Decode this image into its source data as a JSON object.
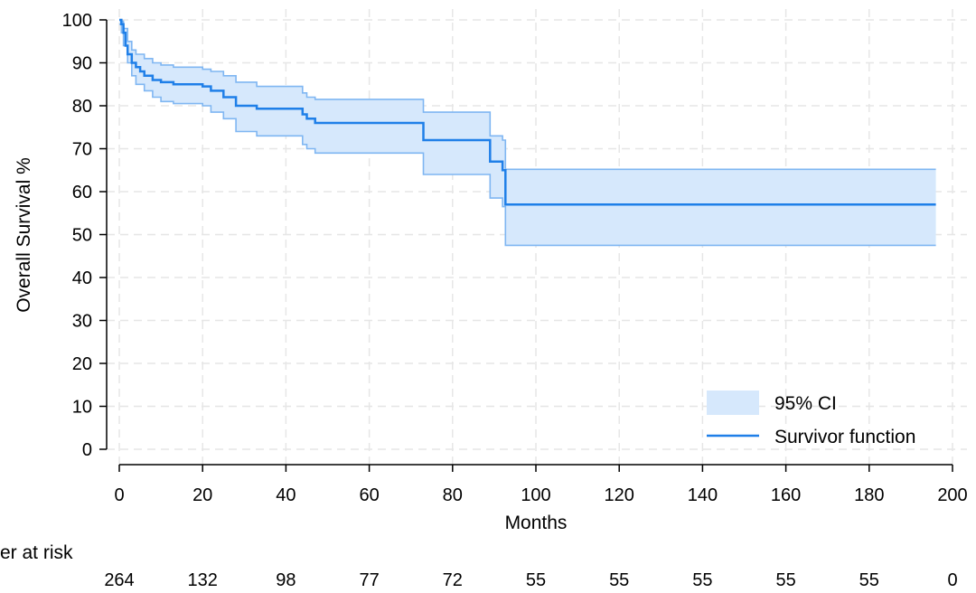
{
  "chart_data": {
    "type": "line",
    "xlabel": "Months",
    "ylabel": "Overall Survival %",
    "xlim": [
      0,
      200
    ],
    "ylim": [
      0,
      100
    ],
    "x_ticks": [
      0,
      20,
      40,
      60,
      80,
      100,
      120,
      140,
      160,
      180,
      200
    ],
    "y_ticks": [
      0,
      10,
      20,
      30,
      40,
      50,
      60,
      70,
      80,
      90,
      100
    ],
    "grid": true,
    "legend_position": "bottom-right",
    "legend": {
      "ci": "95% CI",
      "survival": "Survivor function"
    },
    "colors": {
      "line": "#1f7fe8",
      "ci_fill": "#d6e8fc",
      "ci_edge": "#7fb6f2",
      "grid": "#e6e6e6"
    },
    "survival": {
      "x": [
        0,
        0.5,
        1,
        1.5,
        2,
        3,
        4,
        5,
        6,
        8,
        10,
        13,
        20,
        22,
        25,
        28,
        33,
        38,
        44,
        45,
        47,
        73,
        89,
        92,
        92.7,
        196
      ],
      "y": [
        100,
        99,
        97,
        94,
        92,
        90,
        89,
        88,
        87,
        86,
        85.5,
        85,
        84.5,
        83.5,
        82,
        80,
        79.3,
        79.3,
        78,
        77,
        76,
        72,
        67,
        65,
        57,
        57
      ]
    },
    "ci_upper": {
      "x": [
        0,
        0.5,
        1,
        2,
        3,
        4,
        6,
        8,
        10,
        13,
        20,
        22,
        25,
        28,
        33,
        38,
        44,
        45,
        47,
        73,
        89,
        92,
        92.7,
        196
      ],
      "y": [
        100,
        99.7,
        98,
        95,
        93,
        92,
        91,
        90,
        89.5,
        89,
        88.5,
        88,
        87,
        85.5,
        84.5,
        84.5,
        83,
        82,
        81.5,
        78.5,
        73,
        72,
        65.2,
        65.2
      ]
    },
    "ci_lower": {
      "x": [
        0,
        0.5,
        1,
        2,
        3,
        4,
        6,
        8,
        10,
        13,
        20,
        22,
        25,
        28,
        33,
        38,
        44,
        45,
        47,
        73,
        89,
        92,
        92.7,
        196
      ],
      "y": [
        99,
        97,
        94,
        90,
        87,
        85,
        83.5,
        82,
        81,
        80.5,
        80,
        78.5,
        77,
        74,
        73,
        73,
        71,
        70,
        69,
        64,
        58.5,
        56.5,
        47.5,
        47.5
      ]
    },
    "risk_table": {
      "label": "er at risk",
      "x": [
        0,
        20,
        40,
        60,
        80,
        100,
        120,
        140,
        160,
        180,
        200
      ],
      "counts": [
        "264",
        "132",
        "98",
        "77",
        "72",
        "55",
        "55",
        "55",
        "55",
        "55",
        "0"
      ]
    }
  }
}
